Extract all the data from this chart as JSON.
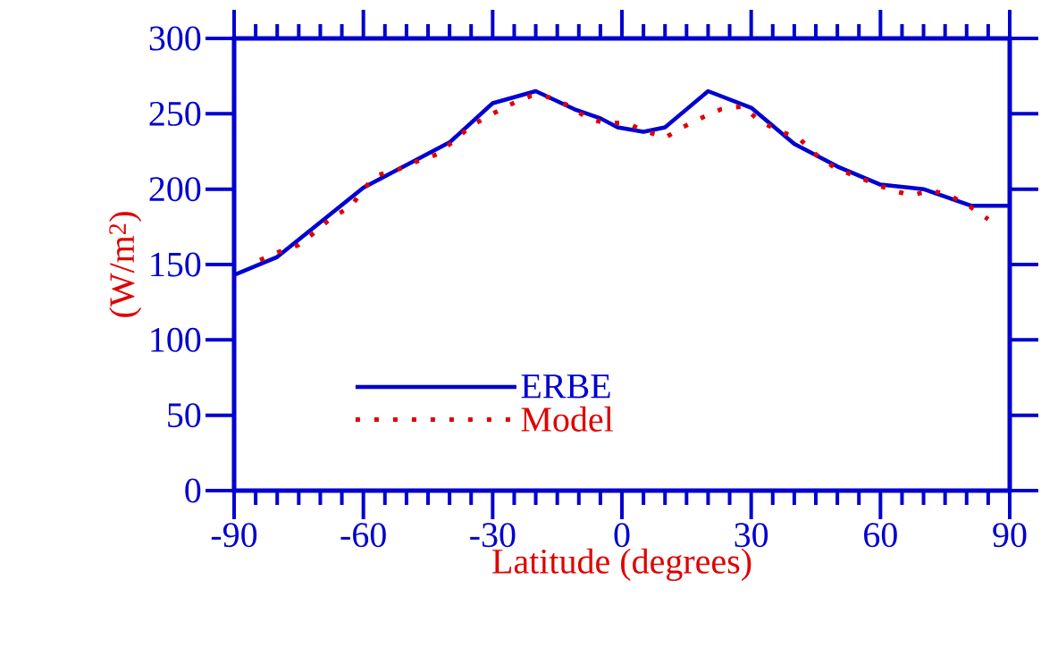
{
  "chart_data": {
    "type": "line",
    "xlabel": "Latitude (degrees)",
    "ylabel": "(W/m$^{2}$)",
    "xlim": [
      -90,
      90
    ],
    "xticks": [
      -90,
      -60,
      -30,
      0,
      30,
      60,
      90
    ],
    "ylim": [
      0,
      300
    ],
    "yticks": [
      0,
      50,
      100,
      150,
      200,
      250,
      300
    ],
    "grid": false,
    "legend": "bottom left",
    "series": [
      {
        "name": "ERBE",
        "color": "#0000d0",
        "line_style": "solid",
        "x": [
          -90,
          -80,
          -60,
          -40,
          -30,
          -20,
          -11,
          -5,
          -1,
          5,
          10,
          20,
          30,
          40,
          50,
          60,
          70,
          81,
          90
        ],
        "values": [
          143,
          155,
          201,
          231,
          257,
          265,
          253,
          247,
          241,
          238,
          241,
          265,
          254,
          230,
          215,
          203,
          200,
          189,
          189
        ]
      },
      {
        "name": "Model",
        "color": "#e00000",
        "line_style": "dotted",
        "x": [
          -84,
          -80,
          -75,
          -71,
          -67,
          -63,
          -60,
          -57,
          -52,
          -48,
          -43,
          -39,
          -35,
          -30,
          -26,
          -21,
          -17,
          -12,
          -8,
          -4,
          1,
          5,
          10,
          14,
          19,
          23,
          28,
          32,
          37,
          41,
          45,
          50,
          54,
          59,
          63,
          67,
          72,
          76,
          81,
          85
        ],
        "values": [
          153,
          158,
          163,
          172,
          182,
          188,
          200,
          209,
          213,
          218,
          223,
          232,
          242,
          250,
          256,
          262,
          261,
          255,
          247,
          244,
          244,
          239,
          234,
          241,
          248,
          253,
          255,
          245,
          238,
          234,
          223,
          213,
          209,
          203,
          199,
          196,
          199,
          196,
          188,
          180
        ]
      }
    ]
  }
}
